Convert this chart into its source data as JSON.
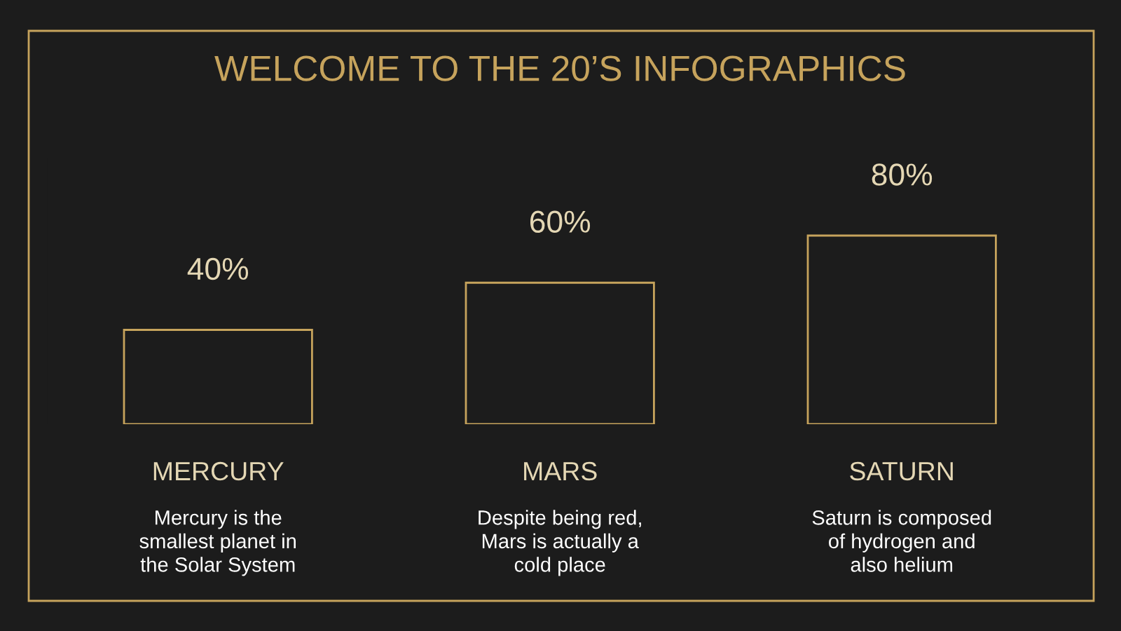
{
  "chart_data": {
    "type": "bar",
    "title": "WELCOME TO THE 20’S INFOGRAPHICS",
    "categories": [
      "MERCURY",
      "MARS",
      "SATURN"
    ],
    "values": [
      40,
      60,
      80
    ],
    "value_labels": [
      "40%",
      "60%",
      "80%"
    ],
    "color": "#c6a35c",
    "tick_labels": "x",
    "annotations": [
      "Mercury is the\nsmallest planet in\nthe Solar System",
      "Despite being red,\nMars is actually a\ncold place",
      "Saturn is composed\nof hydrogen and\nalso helium"
    ]
  }
}
